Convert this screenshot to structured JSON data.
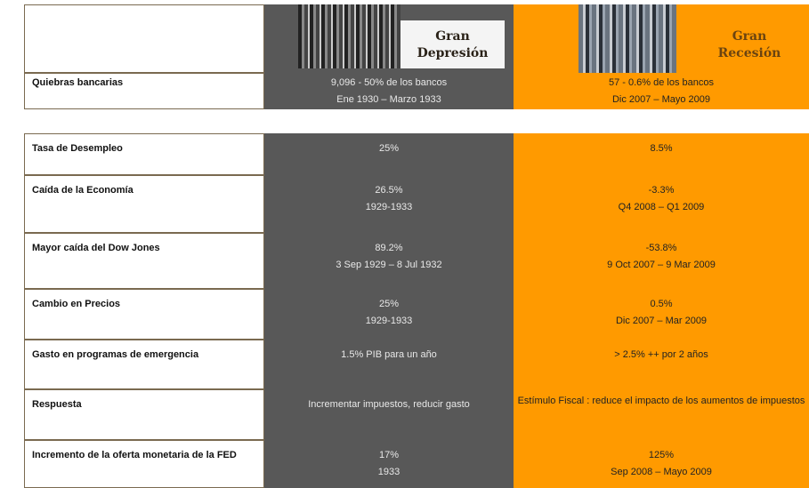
{
  "header": {
    "depresion": [
      "Gran",
      "Depresión"
    ],
    "recesion": [
      "Gran",
      "Recesión"
    ]
  },
  "rows": [
    {
      "label": "Quiebras bancarias",
      "depresion": [
        "9,096 - 50% de los bancos",
        "Ene 1930 – Marzo 1933"
      ],
      "recesion": [
        "57 - 0.6% de los bancos",
        "Dic 2007 – Mayo 2009"
      ]
    },
    {
      "label": "Tasa de Desempleo",
      "depresion": [
        "25%"
      ],
      "recesion": [
        "8.5%"
      ]
    },
    {
      "label": "Caída de la Economía",
      "depresion": [
        "26.5%",
        "1929-1933"
      ],
      "recesion": [
        "-3.3%",
        "Q4 2008 – Q1 2009"
      ]
    },
    {
      "label": "Mayor caída del Dow Jones",
      "depresion": [
        "89.2%",
        "3 Sep 1929 – 8 Jul 1932"
      ],
      "recesion": [
        "-53.8%",
        "9 Oct 2007 – 9 Mar 2009"
      ]
    },
    {
      "label": "Cambio en Precios",
      "depresion": [
        "25%",
        "1929-1933"
      ],
      "recesion": [
        "0.5%",
        "Dic 2007 – Mar 2009"
      ]
    },
    {
      "label": "Gasto en programas de emergencia",
      "depresion": [
        "1.5% PIB  para un año"
      ],
      "recesion": [
        "> 2.5% ++  por  2 años"
      ]
    },
    {
      "label": "Respuesta",
      "depresion": [
        "Incrementar impuestos, reducir gasto"
      ],
      "recesion": [
        "Estímulo Fiscal : reduce el impacto de los aumentos de impuestos"
      ]
    },
    {
      "label": "Incremento de la oferta monetaria de la FED",
      "depresion": [
        "17%",
        "1933"
      ],
      "recesion": [
        "125%",
        "Sep 2008 – Mayo 2009"
      ]
    }
  ]
}
